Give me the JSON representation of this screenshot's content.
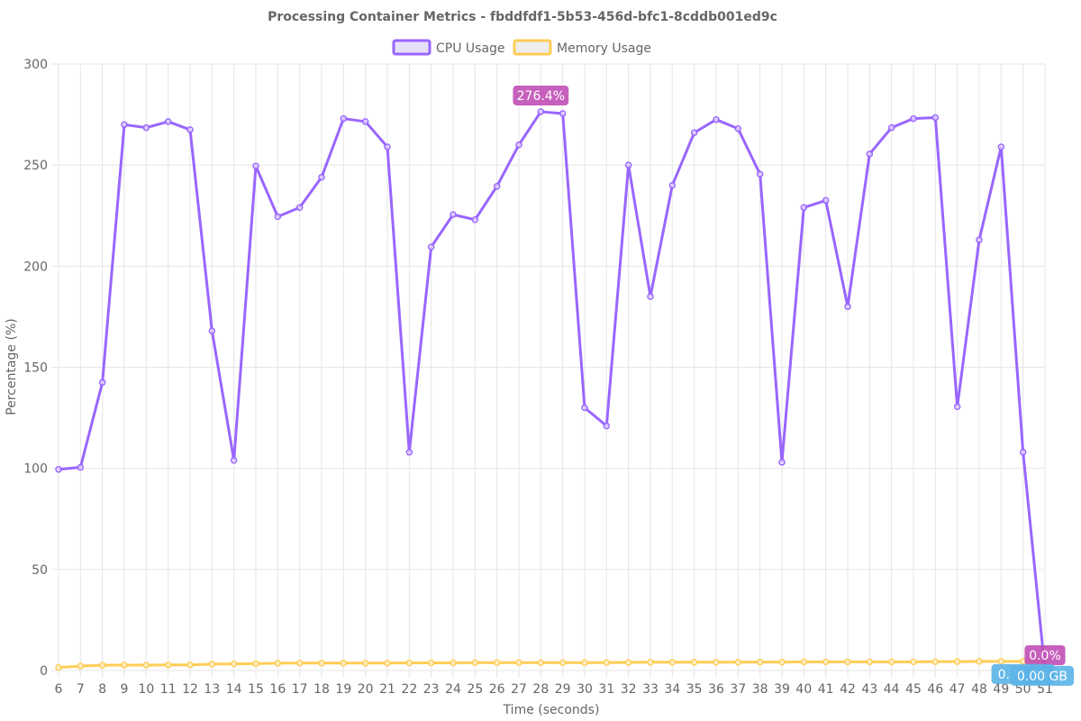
{
  "chart_data": {
    "type": "line",
    "title": "Processing Container Metrics - fbddfdf1-5b53-456d-bfc1-8cddb001ed9c",
    "xlabel": "Time (seconds)",
    "ylabel": "Percentage (%)",
    "ylim": [
      0,
      300
    ],
    "y_ticks": [
      0,
      50,
      100,
      150,
      200,
      250,
      300
    ],
    "grid": true,
    "legend_position": "top-center",
    "x": [
      6,
      7,
      8,
      9,
      10,
      11,
      12,
      13,
      14,
      15,
      16,
      17,
      18,
      19,
      20,
      21,
      22,
      23,
      24,
      25,
      26,
      27,
      28,
      29,
      30,
      31,
      32,
      33,
      34,
      35,
      36,
      37,
      38,
      39,
      40,
      41,
      42,
      43,
      44,
      45,
      46,
      47,
      48,
      49,
      50,
      51
    ],
    "series": [
      {
        "name": "CPU Usage",
        "color": "#9966ff",
        "values": [
          99.5,
          100.5,
          142.5,
          270,
          268.5,
          271.5,
          267.5,
          168,
          104,
          249.5,
          224.5,
          229,
          244,
          273,
          271.5,
          259,
          108,
          209.5,
          225.5,
          223,
          239.5,
          260,
          276.4,
          275.5,
          130,
          121,
          250,
          185,
          240,
          266,
          272.5,
          268,
          245.5,
          103,
          229,
          232.5,
          180,
          255.5,
          268.5,
          273,
          273.5,
          130.5,
          213,
          259,
          108,
          0
        ]
      },
      {
        "name": "Memory Usage",
        "color": "#ffcd56",
        "values": [
          1.5,
          2.2,
          2.6,
          2.7,
          2.7,
          2.8,
          2.8,
          3.2,
          3.3,
          3.4,
          3.6,
          3.7,
          3.7,
          3.7,
          3.7,
          3.7,
          3.8,
          3.8,
          3.8,
          3.9,
          3.9,
          3.9,
          3.9,
          3.9,
          3.9,
          3.9,
          4.0,
          4.1,
          4.1,
          4.1,
          4.1,
          4.1,
          4.2,
          4.2,
          4.3,
          4.3,
          4.3,
          4.3,
          4.3,
          4.3,
          4.4,
          4.4,
          4.5,
          4.5,
          4.5,
          4.5
        ]
      }
    ],
    "annotations": [
      {
        "label": "276.4%",
        "series": 0,
        "index": 22,
        "color": "#c04fb5"
      },
      {
        "label": "0.0%",
        "series": 0,
        "index": 45,
        "color": "#c04fb5"
      },
      {
        "label": "0.73 GB",
        "series": 1,
        "index": 44,
        "color": "#5ab3e8"
      },
      {
        "label": "0.00 GB",
        "series": 1,
        "index": 45,
        "color": "#5ab3e8"
      }
    ],
    "grid_color": "#e5e5e5",
    "text_color": "#666666"
  }
}
